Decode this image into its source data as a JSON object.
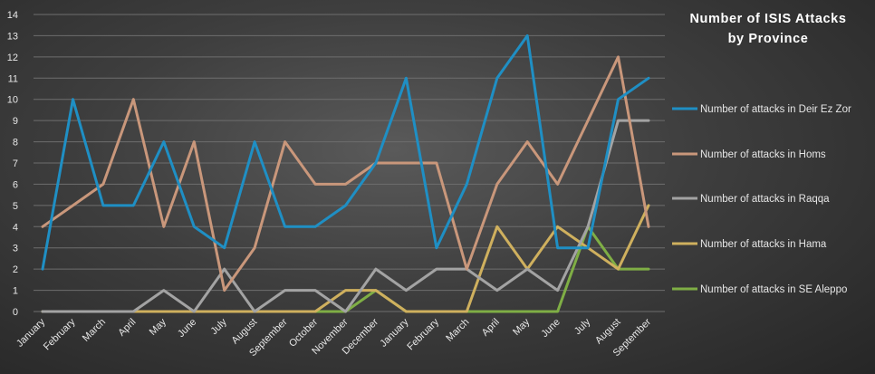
{
  "chart_data": {
    "type": "line",
    "title_lines": [
      "Number of ISIS Attacks",
      "by Province"
    ],
    "categories": [
      "January",
      "February",
      "March",
      "April",
      "May",
      "June",
      "July",
      "August",
      "September",
      "October",
      "November",
      "December",
      "January",
      "February",
      "March",
      "April",
      "May",
      "June",
      "July",
      "August",
      "September"
    ],
    "ylim": [
      0,
      14
    ],
    "yticks": [
      0,
      1,
      2,
      3,
      4,
      5,
      6,
      7,
      8,
      9,
      10,
      11,
      12,
      13,
      14
    ],
    "grid": "horizontal",
    "legend_position": "right",
    "series": [
      {
        "name": "Number of attacks in Deir Ez Zor",
        "color": "#1f8fc4",
        "values": [
          2,
          10,
          5,
          5,
          8,
          4,
          3,
          8,
          4,
          4,
          5,
          7,
          11,
          3,
          6,
          11,
          13,
          3,
          3,
          10,
          11
        ]
      },
      {
        "name": "Number of attacks in Homs",
        "color": "#c9977b",
        "values": [
          4,
          5,
          6,
          10,
          4,
          8,
          1,
          3,
          8,
          6,
          6,
          7,
          7,
          7,
          2,
          6,
          8,
          6,
          9,
          12,
          4
        ]
      },
      {
        "name": "Number of attacks in Raqqa",
        "color": "#a3a3a3",
        "values": [
          0,
          0,
          0,
          0,
          1,
          0,
          2,
          0,
          1,
          1,
          0,
          2,
          1,
          2,
          2,
          1,
          2,
          1,
          4,
          9,
          9
        ]
      },
      {
        "name": "Number of attacks in Hama",
        "color": "#cfb05e",
        "values": [
          0,
          0,
          0,
          0,
          0,
          0,
          0,
          0,
          0,
          0,
          1,
          1,
          0,
          0,
          0,
          4,
          2,
          4,
          3,
          2,
          5
        ]
      },
      {
        "name": "Number of attacks in SE Aleppo",
        "color": "#7fae45",
        "values": [
          0,
          0,
          0,
          0,
          0,
          0,
          0,
          0,
          0,
          0,
          0,
          1,
          0,
          0,
          0,
          0,
          0,
          0,
          4,
          2,
          2
        ]
      }
    ]
  }
}
